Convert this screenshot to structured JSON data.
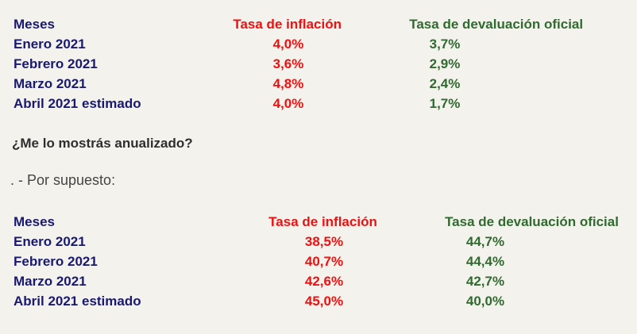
{
  "colors": {
    "background": "#f4f2ec",
    "months": "#191970",
    "inflation": "#ee1111",
    "devaluation": "#2f6b2f",
    "question": "#2e2e2e",
    "answer": "#444444"
  },
  "monthly_table": {
    "headers": {
      "months": "Meses",
      "inflation": "Tasa de inflación",
      "devaluation": "Tasa de devaluación oficial"
    },
    "rows": [
      {
        "month": "Enero 2021",
        "inflation": "4,0%",
        "devaluation": "3,7%"
      },
      {
        "month": "Febrero 2021",
        "inflation": "3,6%",
        "devaluation": "2,9%"
      },
      {
        "month": "Marzo 2021",
        "inflation": "4,8%",
        "devaluation": "2,4%"
      },
      {
        "month": "Abril 2021 estimado",
        "inflation": "4,0%",
        "devaluation": "1,7%"
      }
    ]
  },
  "question": "¿Me lo mostrás anualizado?",
  "answer": ". - Por supuesto:",
  "annualized_table": {
    "headers": {
      "months": "Meses",
      "inflation": "Tasa de inflación",
      "devaluation": "Tasa de devaluación oficial"
    },
    "rows": [
      {
        "month": "Enero 2021",
        "inflation": "38,5%",
        "devaluation": "44,7%"
      },
      {
        "month": "Febrero 2021",
        "inflation": "40,7%",
        "devaluation": "44,4%"
      },
      {
        "month": "Marzo 2021",
        "inflation": "42,6%",
        "devaluation": "42,7%"
      },
      {
        "month": "Abril 2021 estimado",
        "inflation": "45,0%",
        "devaluation": "40,0%"
      }
    ]
  }
}
